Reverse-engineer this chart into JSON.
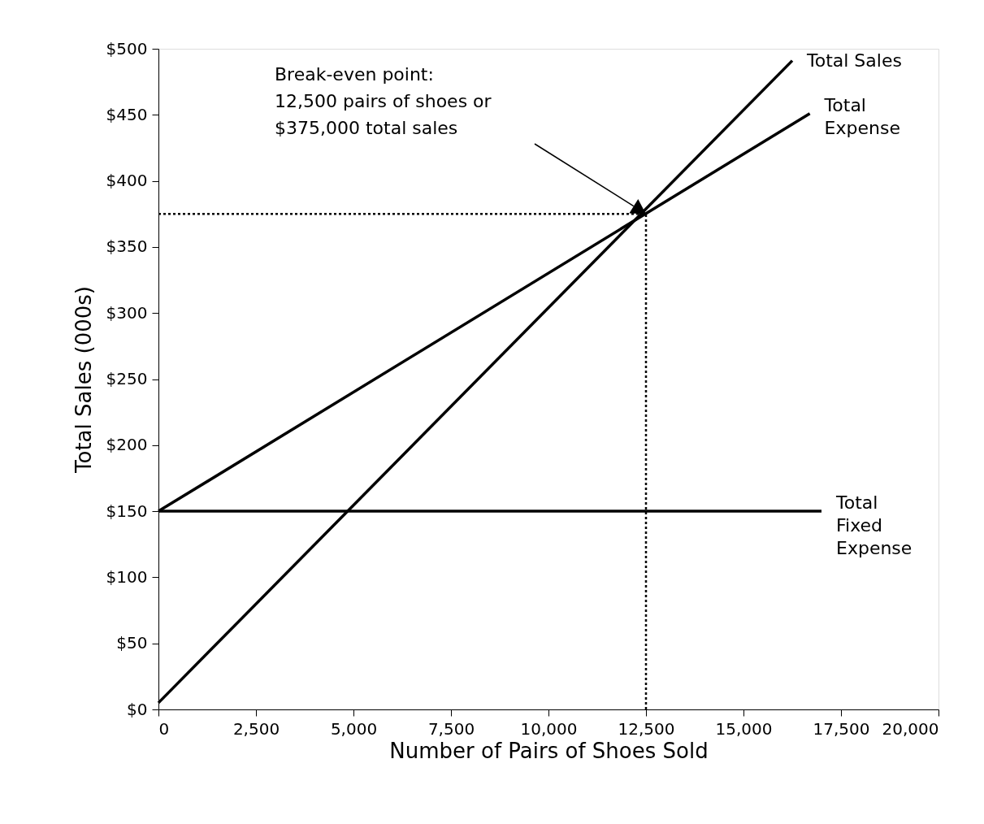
{
  "chart_data": {
    "type": "line",
    "xlabel": "Number of Pairs of Shoes Sold",
    "ylabel": "Total Sales (000s)",
    "xlim": [
      0,
      20000
    ],
    "xticks": [
      0,
      {
        "value": 2500,
        "label": "2,500"
      },
      {
        "value": 5000,
        "label": "5,000"
      },
      {
        "value": 7500,
        "label": "7,500"
      },
      {
        "value": 10000,
        "label": "10,000"
      },
      {
        "value": 12500,
        "label": "12,500"
      },
      {
        "value": 15000,
        "label": "15,000"
      },
      {
        "value": 17500,
        "label": "17,500"
      },
      {
        "value": 20000,
        "label": "20,000"
      }
    ],
    "ylim": [
      0,
      500
    ],
    "yticks": [
      {
        "value": 0,
        "label": "$0"
      },
      {
        "value": 50,
        "label": "$50"
      },
      {
        "value": 100,
        "label": "$100"
      },
      {
        "value": 150,
        "label": "$150"
      },
      {
        "value": 200,
        "label": "$200"
      },
      {
        "value": 250,
        "label": "$250"
      },
      {
        "value": 300,
        "label": "$300"
      },
      {
        "value": 350,
        "label": "$350"
      },
      {
        "value": 400,
        "label": "$400"
      },
      {
        "value": 450,
        "label": "$450"
      },
      {
        "value": 500,
        "label": "$500"
      }
    ],
    "grid": false,
    "legend": false,
    "marker": "none",
    "line_style": "solid",
    "series": [
      {
        "name": "Total Sales",
        "color": "#000000",
        "x": [
          0,
          16250
        ],
        "values": [
          5,
          491
        ]
      },
      {
        "name": "Total Expense",
        "color": "#000000",
        "x": [
          0,
          16700
        ],
        "values": [
          150,
          451
        ]
      },
      {
        "name": "Total Fixed Expense",
        "color": "#000000",
        "x": [
          0,
          17000
        ],
        "values": [
          150,
          150
        ]
      }
    ],
    "ref_lines": [
      {
        "axis": "x",
        "value": 12500,
        "color": "#000000",
        "line_style": "dotted"
      },
      {
        "axis": "y",
        "value": 375,
        "color": "#000000",
        "line_style": "dotted"
      }
    ],
    "annotations": [
      "Break-even point:\n12,500 pairs of shoes or\n$375,000 total sales"
    ]
  }
}
